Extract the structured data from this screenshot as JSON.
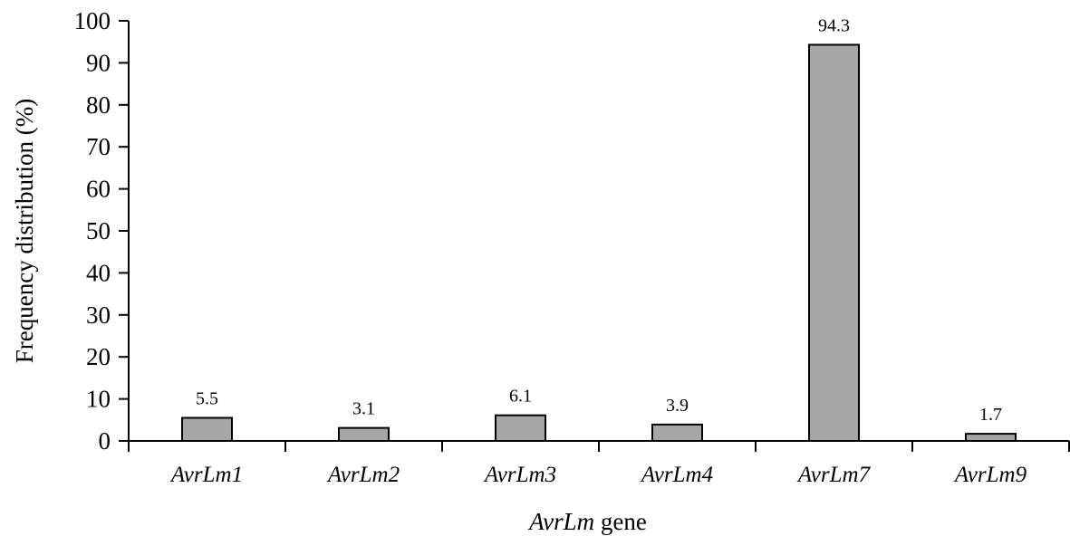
{
  "chart_data": {
    "type": "bar",
    "categories": [
      "AvrLm1",
      "AvrLm2",
      "AvrLm3",
      "AvrLm4",
      "AvrLm7",
      "AvrLm9"
    ],
    "values": [
      5.5,
      3.1,
      6.1,
      3.9,
      94.3,
      1.7
    ],
    "data_labels": [
      "5.5",
      "3.1",
      "6.1",
      "3.9",
      "94.3",
      "1.7"
    ],
    "title": "",
    "xlabel_italic": "AvrLm",
    "xlabel_rest": " gene",
    "ylabel": "Frequency distribution (%)",
    "ylim": [
      0,
      100
    ],
    "yticks": [
      0,
      10,
      20,
      30,
      40,
      50,
      60,
      70,
      80,
      90,
      100
    ],
    "grid": false,
    "legend": "none",
    "bar_color": "#a6a6a6",
    "bar_edge_color": "#000000"
  }
}
